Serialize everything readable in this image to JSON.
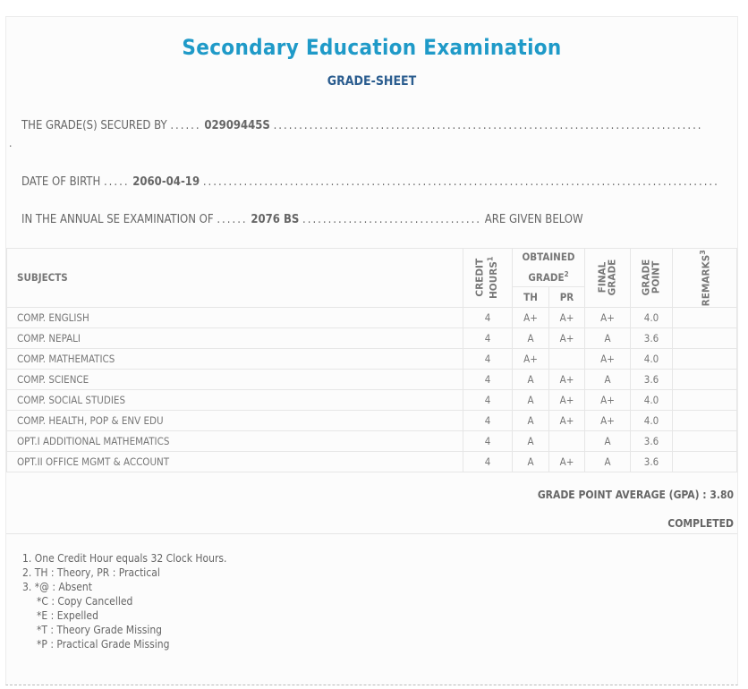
{
  "header": {
    "title": "Secondary Education Examination",
    "subtitle": "GRADE-SHEET"
  },
  "student": {
    "secured_by_label": "THE GRADE(S) SECURED BY",
    "symbol_no": "02909445S",
    "dob_label": "DATE OF BIRTH",
    "dob": "2060-04-19",
    "exam_label": "IN THE ANNUAL SE EXAMINATION OF",
    "exam_year": "2076 BS",
    "exam_suffix": "ARE GIVEN BELOW"
  },
  "table": {
    "headers": {
      "subjects": "SUBJECTS",
      "credit": "CREDIT",
      "hours": "HOURS",
      "hours_sup": "1",
      "obtained": "OBTAINED",
      "grade": "GRADE",
      "grade_sup": "2",
      "th": "TH",
      "pr": "PR",
      "final1": "FINAL",
      "final2": "GRADE",
      "gp1": "GRADE",
      "gp2": "POINT",
      "remarks": "REMARKS",
      "remarks_sup": "3"
    },
    "rows": [
      {
        "subject": "COMP. ENGLISH",
        "credit": "4",
        "th": "A+",
        "pr": "A+",
        "final": "A+",
        "gp": "4.0",
        "remarks": ""
      },
      {
        "subject": "COMP. NEPALI",
        "credit": "4",
        "th": "A",
        "pr": "A+",
        "final": "A",
        "gp": "3.6",
        "remarks": ""
      },
      {
        "subject": "COMP. MATHEMATICS",
        "credit": "4",
        "th": "A+",
        "pr": "",
        "final": "A+",
        "gp": "4.0",
        "remarks": ""
      },
      {
        "subject": "COMP. SCIENCE",
        "credit": "4",
        "th": "A",
        "pr": "A+",
        "final": "A",
        "gp": "3.6",
        "remarks": ""
      },
      {
        "subject": "COMP. SOCIAL STUDIES",
        "credit": "4",
        "th": "A",
        "pr": "A+",
        "final": "A+",
        "gp": "4.0",
        "remarks": ""
      },
      {
        "subject": "COMP. HEALTH, POP & ENV EDU",
        "credit": "4",
        "th": "A",
        "pr": "A+",
        "final": "A+",
        "gp": "4.0",
        "remarks": ""
      },
      {
        "subject": "OPT.I ADDITIONAL MATHEMATICS",
        "credit": "4",
        "th": "A",
        "pr": "",
        "final": "A",
        "gp": "3.6",
        "remarks": ""
      },
      {
        "subject": "OPT.II OFFICE MGMT & ACCOUNT",
        "credit": "4",
        "th": "A",
        "pr": "A+",
        "final": "A",
        "gp": "3.6",
        "remarks": ""
      }
    ]
  },
  "summary": {
    "gpa": "GRADE POINT AVERAGE (GPA) : 3.80",
    "status": "COMPLETED"
  },
  "notes": [
    "1. One Credit Hour equals 32 Clock Hours.",
    "2. TH : Theory, PR : Practical",
    "3. *@ : Absent",
    "*C : Copy Cancelled",
    "*E : Expelled",
    "*T : Theory Grade Missing",
    "*P : Practical Grade Missing"
  ]
}
